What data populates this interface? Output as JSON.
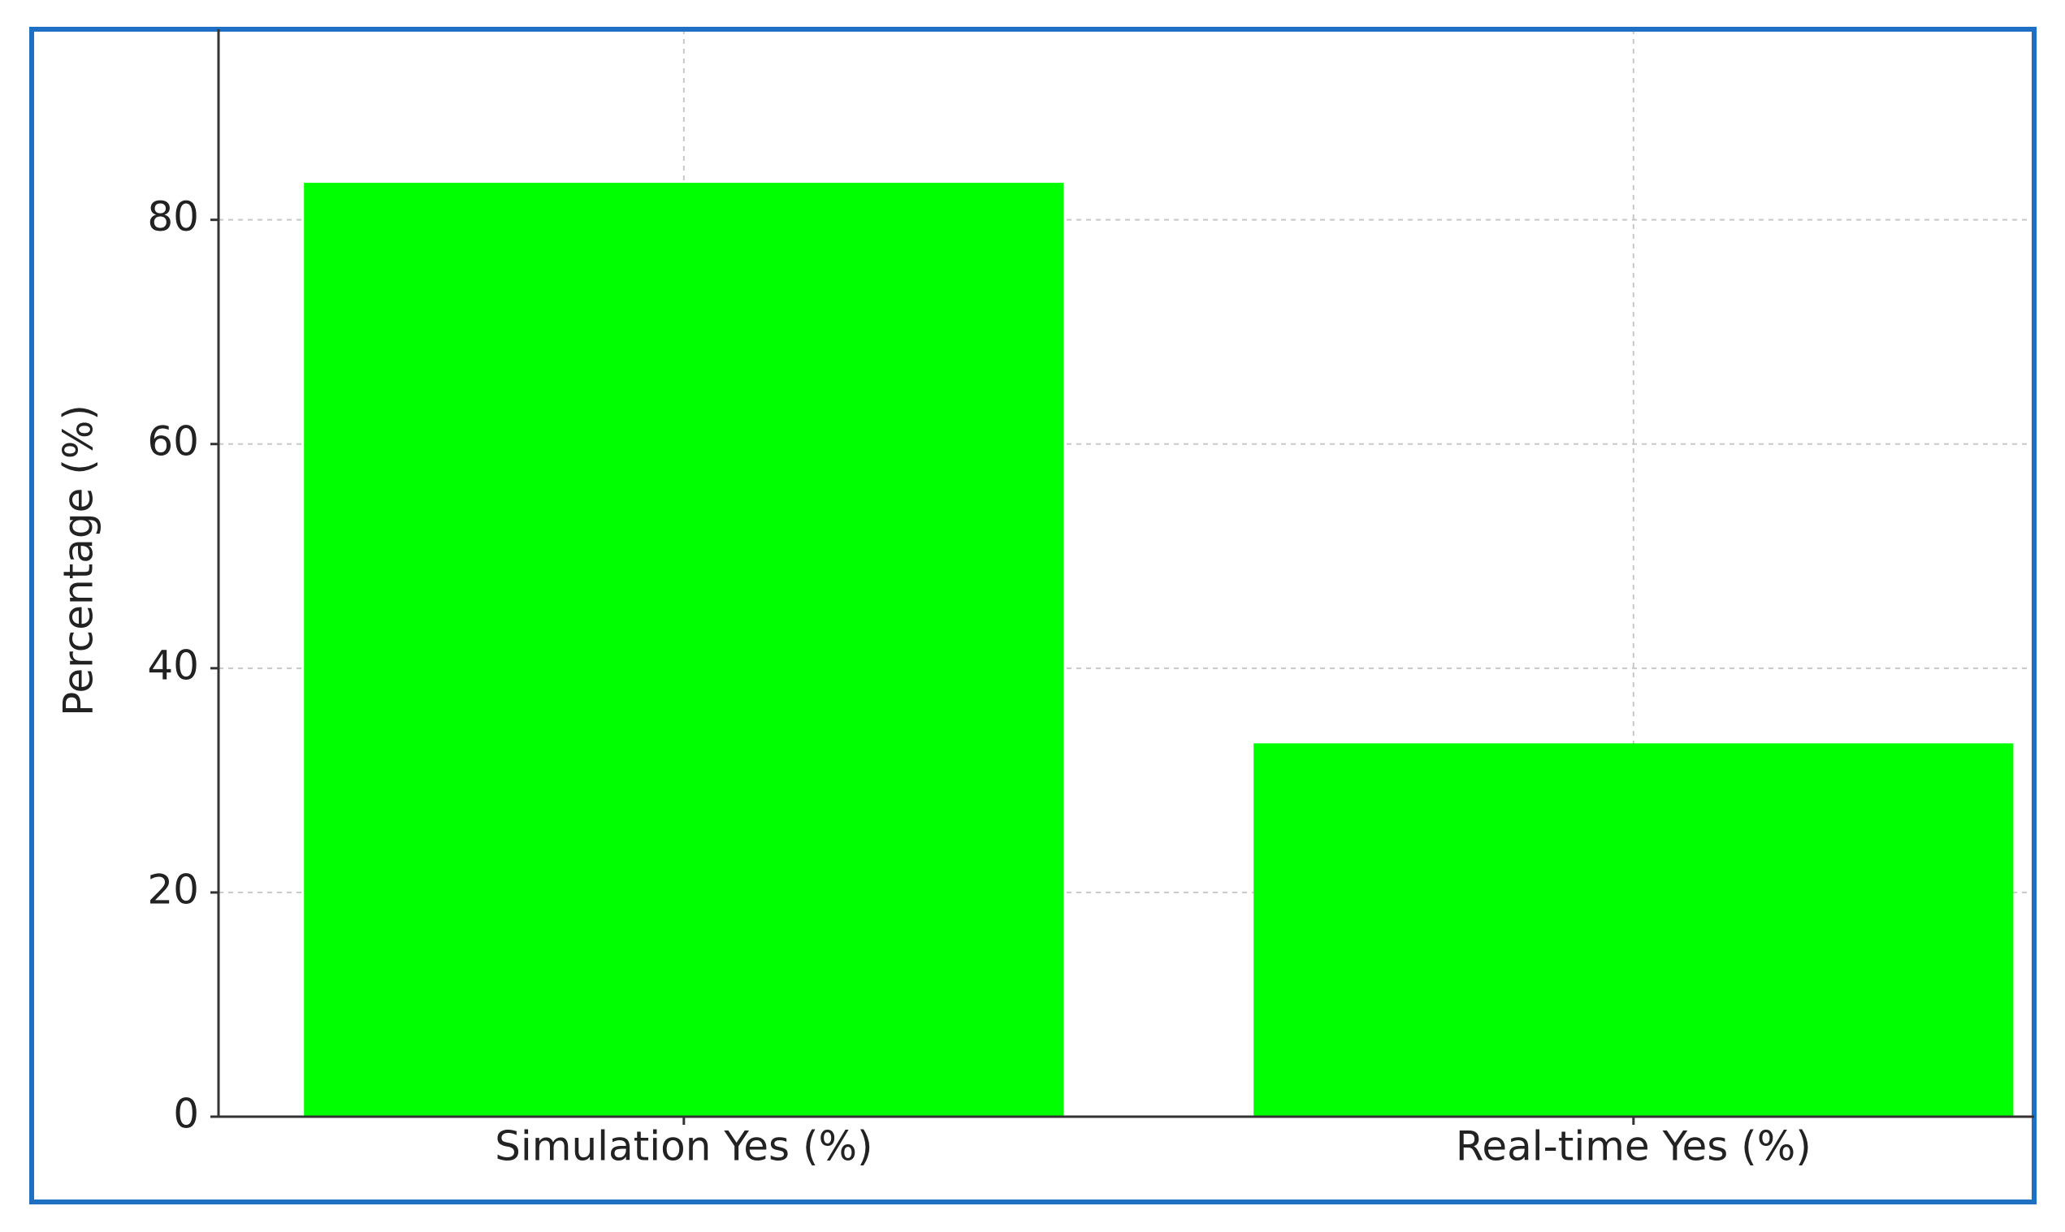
{
  "chart_data": {
    "type": "bar",
    "ylabel": "Percentage (%)",
    "categories": [
      "Simulation Yes (%)",
      "Real-time Yes (%)"
    ],
    "values": [
      83.3,
      33.3
    ],
    "color": "#00ff00",
    "ylim": [
      0,
      97
    ],
    "yticks": [
      0,
      20,
      40,
      60,
      80
    ],
    "grid": true
  }
}
